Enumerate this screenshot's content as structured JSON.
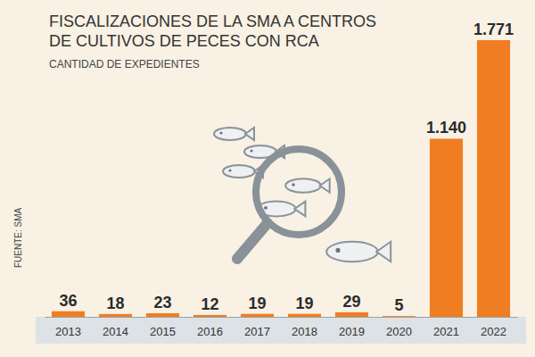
{
  "chart_data": {
    "type": "bar",
    "title": "FISCALIZACIONES DE LA SMA A CENTROS DE CULTIVOS DE PECES CON RCA",
    "subtitle": "CANTIDAD DE EXPEDIENTES",
    "source": "FUENTE: SMA",
    "categories": [
      "2013",
      "2014",
      "2015",
      "2016",
      "2017",
      "2018",
      "2019",
      "2020",
      "2021",
      "2022"
    ],
    "values": [
      36,
      18,
      23,
      12,
      19,
      19,
      29,
      5,
      1140,
      1771
    ],
    "value_labels": [
      "36",
      "18",
      "23",
      "12",
      "19",
      "19",
      "29",
      "5",
      "1.140",
      "1.771"
    ],
    "color": "#f07d22",
    "ylim": [
      0,
      1771
    ],
    "data_labels": true,
    "tick_labels": "x",
    "grid": false
  }
}
